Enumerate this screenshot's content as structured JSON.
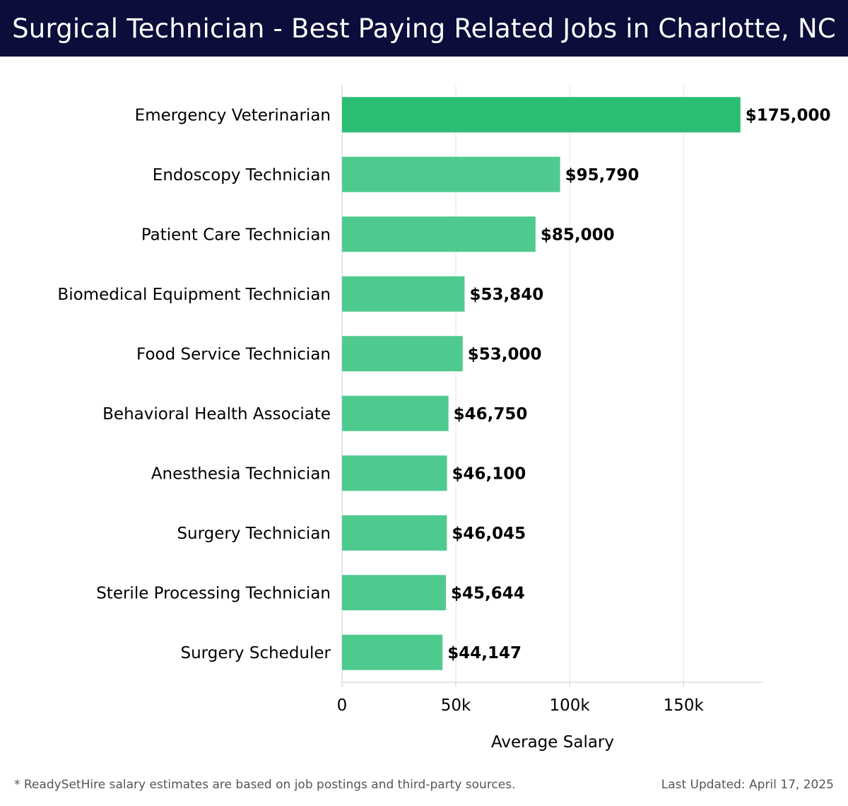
{
  "header": {
    "title": "Surgical Technician - Best Paying Related Jobs in Charlotte, NC"
  },
  "chart_data": {
    "type": "bar",
    "orientation": "horizontal",
    "title": "Surgical Technician - Best Paying Related Jobs in Charlotte, NC",
    "xlabel": "Average Salary",
    "ylabel": "",
    "xlim": [
      0,
      185000
    ],
    "xticks": [
      0,
      50000,
      100000,
      150000
    ],
    "xtick_labels": [
      "0",
      "50k",
      "100k",
      "150k"
    ],
    "grid": "vertical",
    "categories": [
      "Emergency Veterinarian",
      "Endoscopy Technician",
      "Patient Care Technician",
      "Biomedical Equipment Technician",
      "Food Service Technician",
      "Behavioral Health Associate",
      "Anesthesia Technician",
      "Surgery Technician",
      "Sterile Processing Technician",
      "Surgery Scheduler"
    ],
    "values": [
      175000,
      95790,
      85000,
      53840,
      53000,
      46750,
      46100,
      46045,
      45644,
      44147
    ],
    "value_labels": [
      "$175,000",
      "$95,790",
      "$85,000",
      "$53,840",
      "$53,000",
      "$46,750",
      "$46,100",
      "$46,045",
      "$45,644",
      "$44,147"
    ],
    "colors": {
      "top_bar": "#2bbd73",
      "other_bars": "#4fca8f",
      "grid": "#e3e3e3",
      "axis": "#cccccc",
      "text": "#000000"
    }
  },
  "footer": {
    "note": "* ReadySetHire salary estimates are based on job postings and third-party sources.",
    "updated": "Last Updated: April 17, 2025"
  }
}
